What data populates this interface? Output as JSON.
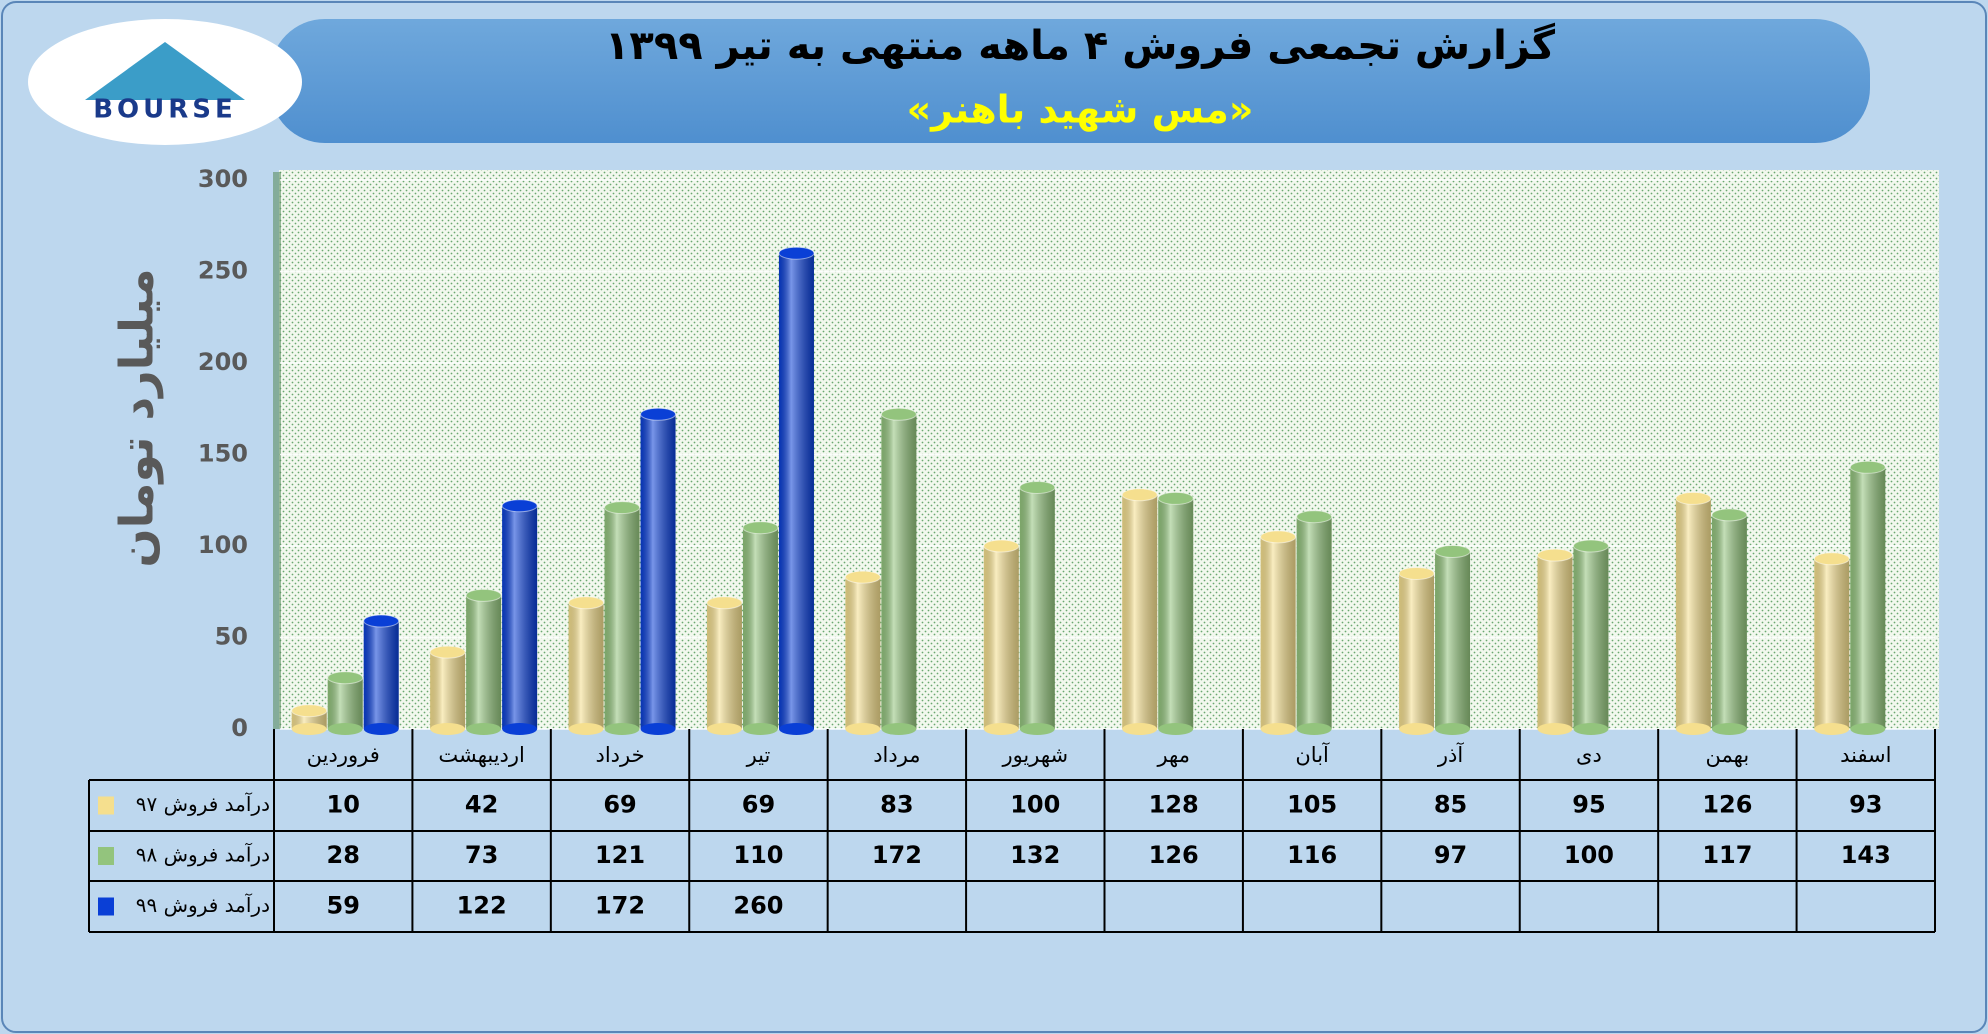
{
  "logo_text": "BOURSE",
  "chart_data": {
    "type": "bar",
    "title": "گزارش تجمعی فروش ۴ ماهه منتهی به تیر ۱۳۹۹",
    "subtitle": "«مس شهید باهنر»",
    "y_label": "میلیارد تومان",
    "categories": [
      "فروردین",
      "اردیبهشت",
      "خرداد",
      "تیر",
      "مرداد",
      "شهریور",
      "مهر",
      "آبان",
      "آذر",
      "دی",
      "بهمن",
      "اسفند"
    ],
    "series": [
      {
        "name": "درآمد فروش ۹۷",
        "color": "#f5df8e",
        "values": [
          10,
          42,
          69,
          69,
          83,
          100,
          128,
          105,
          85,
          95,
          126,
          93
        ]
      },
      {
        "name": "درآمد فروش ۹۸",
        "color": "#93c47d",
        "values": [
          28,
          73,
          121,
          110,
          172,
          132,
          126,
          116,
          97,
          100,
          117,
          143
        ]
      },
      {
        "name": "درآمد فروش ۹۹",
        "color": "#0a3fd6",
        "values": [
          59,
          122,
          172,
          260,
          null,
          null,
          null,
          null,
          null,
          null,
          null,
          null
        ]
      }
    ],
    "ylim": [
      0,
      300
    ],
    "yticks": [
      0,
      50,
      100,
      150,
      200,
      250,
      300
    ],
    "grid": true
  }
}
